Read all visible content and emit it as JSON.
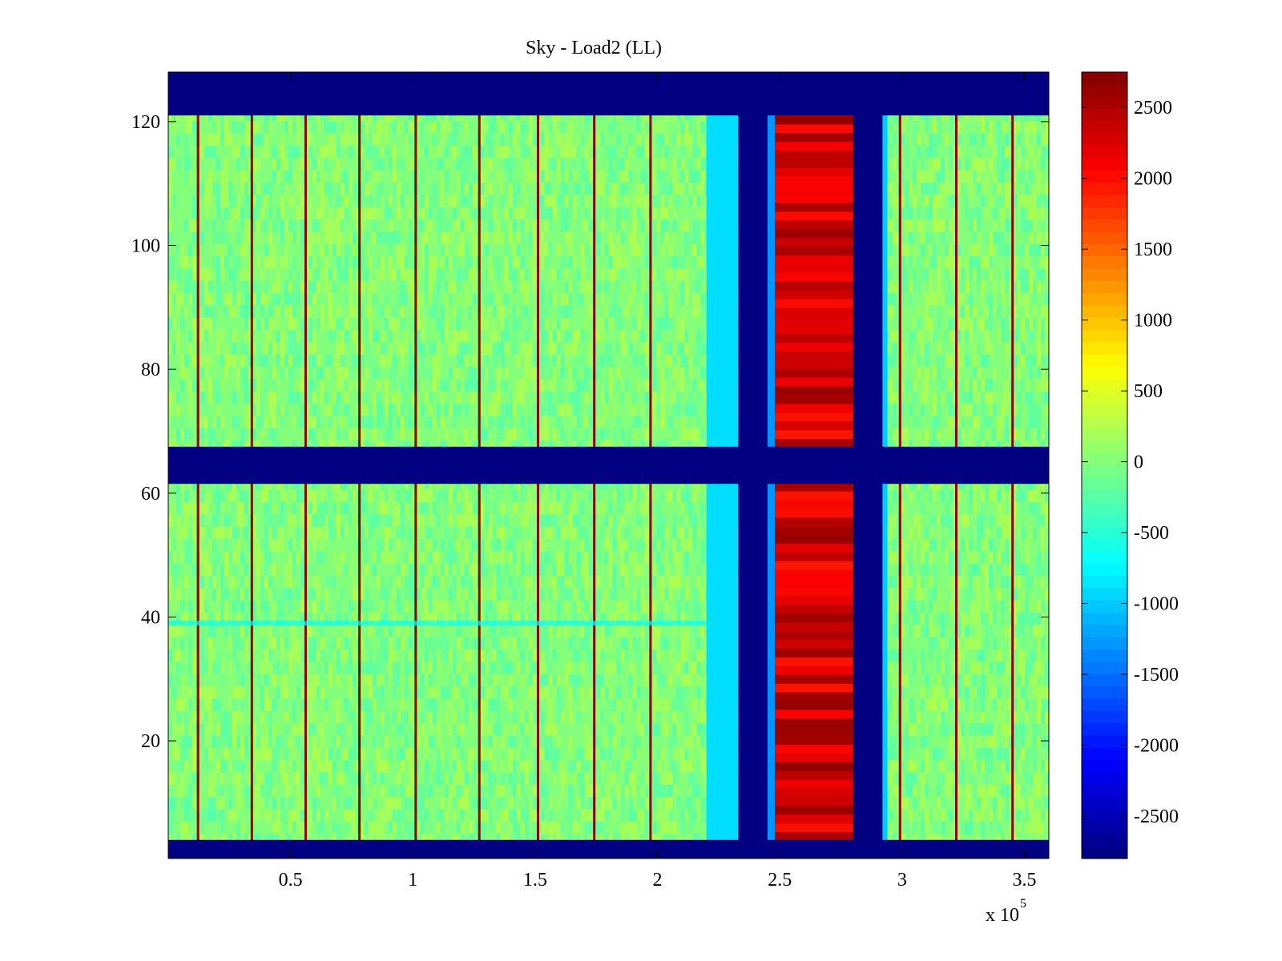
{
  "chart_data": {
    "type": "heatmap",
    "title": "Sky - Load2 (LL)",
    "xlabel": "",
    "ylabel": "",
    "x_multiplier_label": "x 10",
    "x_multiplier_exponent": "5",
    "xlim": [
      0,
      3.6
    ],
    "ylim": [
      1,
      128
    ],
    "x_ticks": [
      0.5,
      1,
      1.5,
      2,
      2.5,
      3,
      3.5
    ],
    "x_tick_labels": [
      "0.5",
      "1",
      "1.5",
      "2",
      "2.5",
      "3",
      "3.5"
    ],
    "y_ticks": [
      20,
      40,
      60,
      80,
      100,
      120
    ],
    "y_tick_labels": [
      "20",
      "40",
      "60",
      "80",
      "100",
      "120"
    ],
    "colorbar": {
      "range": [
        -2800,
        2750
      ],
      "ticks": [
        2500,
        2000,
        1500,
        1000,
        500,
        0,
        -500,
        -1000,
        -1500,
        -2000,
        -2500
      ],
      "tick_labels": [
        "2500",
        "2000",
        "1500",
        "1000",
        "500",
        "0",
        "-500",
        "-1000",
        "-1500",
        "-2000",
        "-2500"
      ],
      "colormap": "jet"
    },
    "background_value": 0,
    "masked_value": -2800,
    "masked_rows": [
      [
        1,
        4
      ],
      [
        61.5,
        67.5
      ],
      [
        121,
        128
      ]
    ],
    "masked_columns": [
      [
        2.33,
        2.45
      ],
      [
        2.8,
        2.92
      ]
    ],
    "column_bands": [
      {
        "x_start": 2.2,
        "x_end": 2.33,
        "value": -900
      },
      {
        "x_start": 2.45,
        "x_end": 2.48,
        "value": -1300
      },
      {
        "x_start": 2.48,
        "x_end": 2.8,
        "value": 2200
      },
      {
        "x_start": 2.92,
        "x_end": 2.94,
        "value": -1000
      }
    ],
    "anomaly_row": {
      "y": 39,
      "value": -700
    },
    "stripe_columns": [
      0.12,
      0.34,
      0.56,
      0.78,
      1.01,
      1.27,
      1.51,
      1.74,
      1.97,
      2.99,
      3.22,
      3.45
    ]
  }
}
